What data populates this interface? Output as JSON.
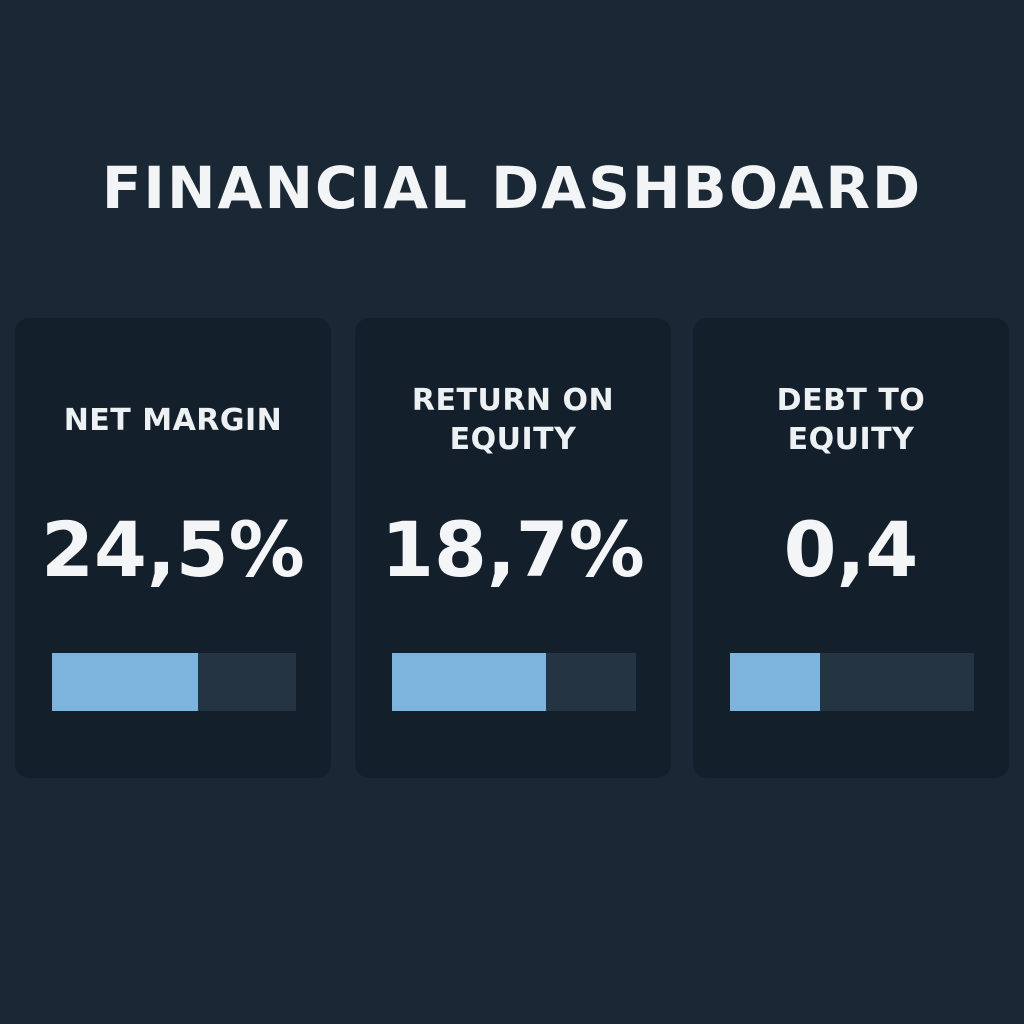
{
  "header": {
    "title": "FINANCIAL DASHBOARD"
  },
  "colors": {
    "background": "#1a2836",
    "card": "#131f2a",
    "bar_track": "#243442",
    "bar_fill": "#7cb4de",
    "text": "#f2f4f6"
  },
  "cards": [
    {
      "label": "NET MARGIN",
      "value": "24,5%",
      "progress": 0.6
    },
    {
      "label": "RETURN ON EQUITY",
      "value": "18,7%",
      "progress": 0.63
    },
    {
      "label": "DEBT TO EQUITY",
      "value": "0,4",
      "progress": 0.37
    }
  ]
}
